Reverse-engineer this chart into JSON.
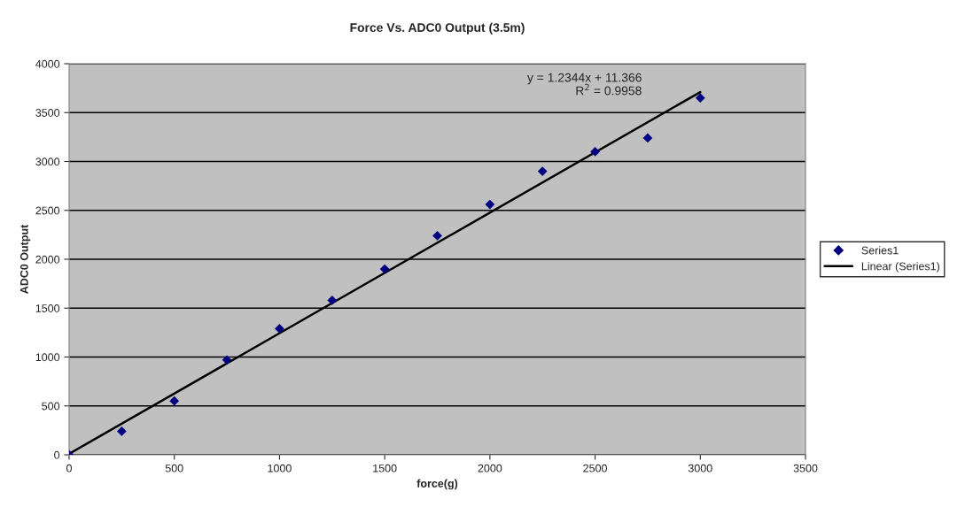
{
  "chart_data": {
    "type": "scatter",
    "title": "Force Vs. ADC0 Output (3.5m)",
    "xlabel": "force(g)",
    "ylabel": "ADC0 Output",
    "series": [
      {
        "name": "Series1",
        "color": "#000080",
        "marker": "diamond",
        "x": [
          0,
          250,
          500,
          750,
          1000,
          1250,
          1500,
          1750,
          2000,
          2250,
          2500,
          2750,
          3000
        ],
        "values": [
          0,
          240,
          550,
          970,
          1290,
          1580,
          1900,
          2240,
          2560,
          2900,
          3100,
          3240,
          3650
        ]
      },
      {
        "name": "Linear (Series1)",
        "type": "line",
        "color": "#000000",
        "marker": "none",
        "line_style": "solid",
        "x": [
          0,
          3000
        ],
        "values": [
          10,
          3710
        ]
      }
    ],
    "annotations": [
      "y = 1.2344x + 11.366\nR$^{2}$ = 0.9958"
    ],
    "xlim": [
      0,
      3500
    ],
    "xticks": [
      0,
      500,
      1000,
      1500,
      2000,
      2500,
      3000,
      3500
    ],
    "ylim": [
      0,
      4000
    ],
    "yticks": [
      0,
      500,
      1000,
      1500,
      2000,
      2500,
      3000,
      3500,
      4000
    ],
    "grid": "y",
    "legend": "right"
  }
}
